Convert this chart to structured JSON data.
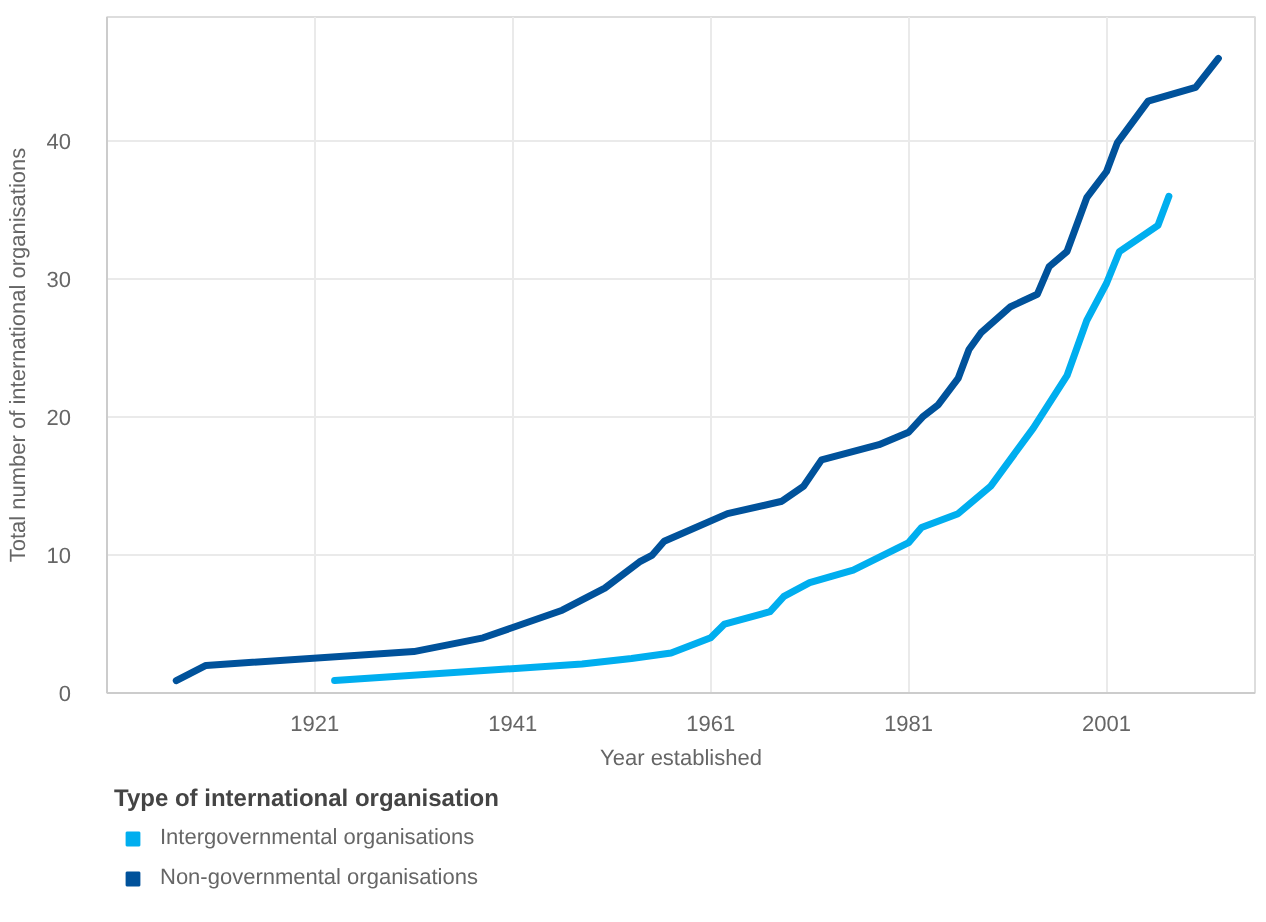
{
  "chart_data": {
    "type": "line",
    "xlabel": "Year established",
    "ylabel": "Total number of international organisations",
    "legend_title": "Type of international organisation",
    "xlim": [
      1900,
      2016
    ],
    "xticks": [
      1921,
      1941,
      1961,
      1981,
      2001
    ],
    "ylim": [
      0,
      49
    ],
    "yticks": [
      0,
      10,
      20,
      30,
      40
    ],
    "grid": true,
    "legend": "bottom left",
    "marker": "none",
    "line_style": "solid",
    "series": [
      {
        "name": "Intergovernmental organisations",
        "color": "#00aeef",
        "x": [
          1923,
          1948,
          1953,
          1957,
          1961,
          1962.4,
          1967,
          1968.4,
          1971,
          1975.4,
          1981,
          1982.3,
          1986,
          1989.3,
          1993.6,
          1997,
          1999,
          2001,
          2002.3,
          2006.2,
          2007.3
        ],
        "values": [
          0.9,
          2.1,
          2.5,
          2.9,
          4.0,
          5.0,
          5.9,
          7.0,
          8.0,
          8.9,
          10.9,
          12.0,
          13.0,
          15.0,
          19.2,
          23.0,
          27.0,
          29.7,
          32.0,
          33.9,
          36.0
        ]
      },
      {
        "name": "Non-governmental organisations",
        "color": "#00529b",
        "x": [
          1907,
          1910,
          1931,
          1938,
          1946,
          1950.3,
          1953.8,
          1955.1,
          1956.3,
          1962.7,
          1968.2,
          1970.4,
          1972.2,
          1978,
          1981,
          1982.4,
          1984,
          1986,
          1987.1,
          1988.3,
          1991.3,
          1994,
          1995.2,
          1997,
          1999,
          2001,
          2002.1,
          2005.2,
          2010,
          2012.3
        ],
        "values": [
          0.9,
          2.0,
          3.0,
          4.0,
          6.0,
          7.6,
          9.5,
          10.0,
          11.0,
          13.0,
          13.9,
          15.0,
          16.9,
          18.0,
          18.9,
          20.0,
          20.9,
          22.8,
          24.9,
          26.1,
          28.0,
          28.9,
          30.9,
          32.0,
          35.9,
          37.8,
          39.9,
          42.9,
          43.9,
          46.0
        ]
      }
    ]
  }
}
